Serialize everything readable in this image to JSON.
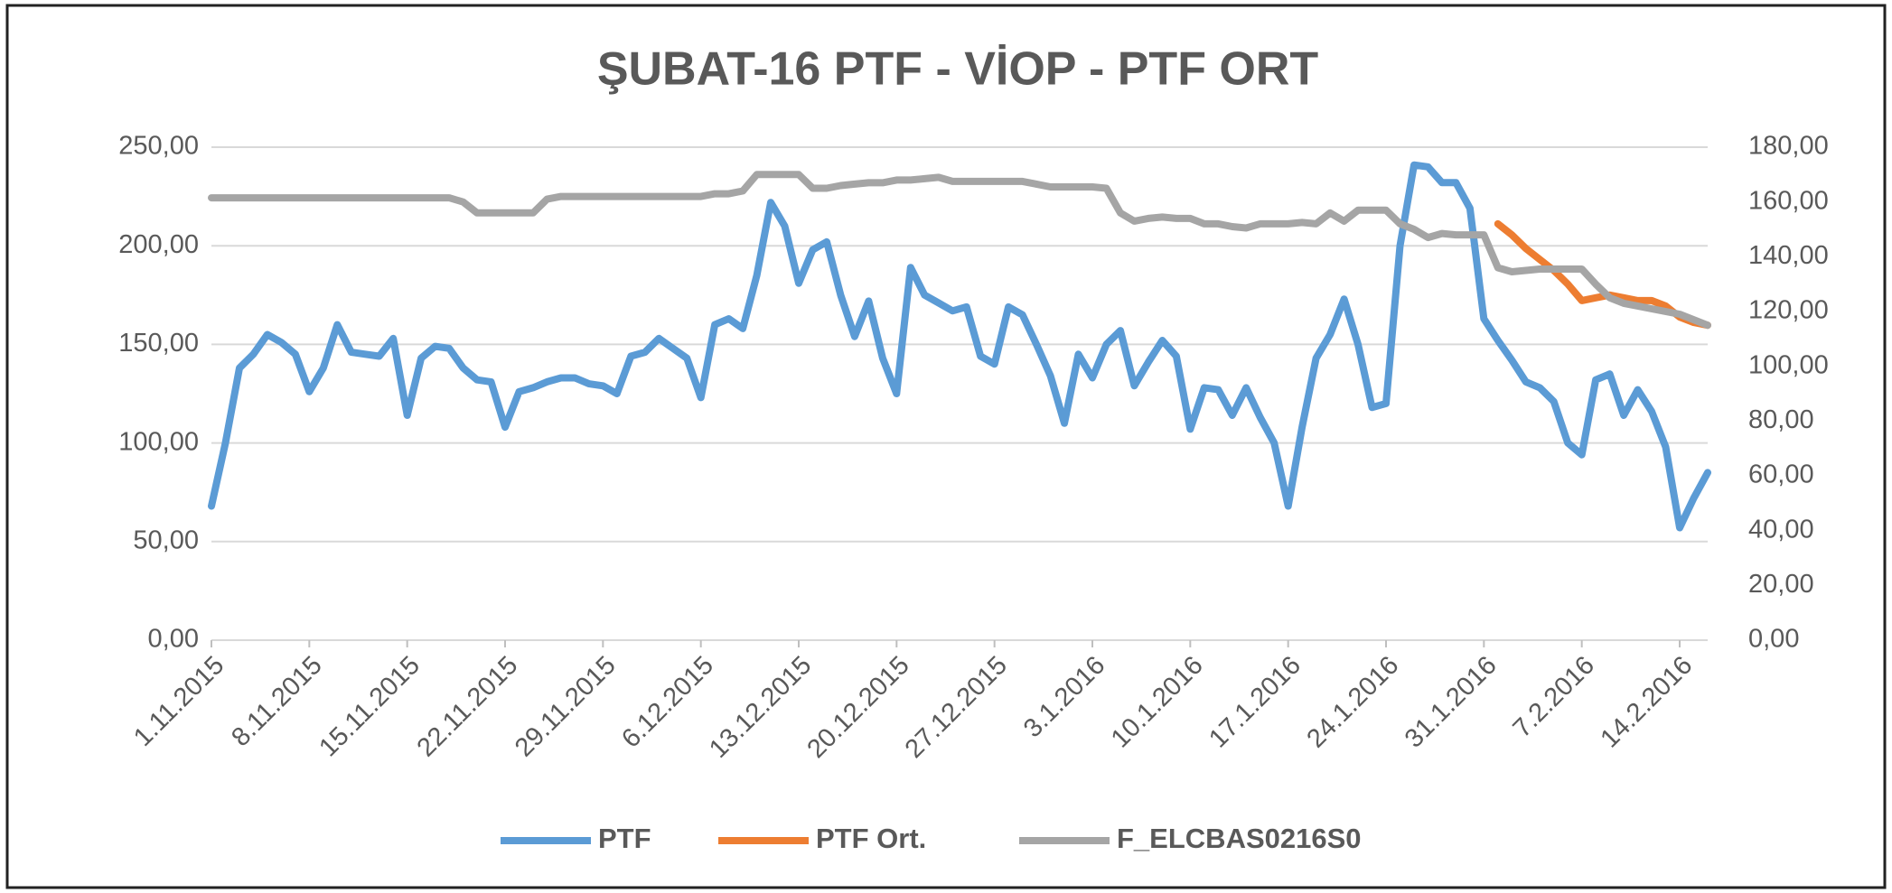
{
  "chart_data": {
    "type": "line",
    "title": "ŞUBAT-16 PTF - VİOP - PTF ORT",
    "categories": [
      "1.11.2015",
      null,
      null,
      null,
      null,
      null,
      null,
      "8.11.2015",
      null,
      null,
      null,
      null,
      null,
      null,
      "15.11.2015",
      null,
      null,
      null,
      null,
      null,
      null,
      "22.11.2015",
      null,
      null,
      null,
      null,
      null,
      null,
      "29.11.2015",
      null,
      null,
      null,
      null,
      null,
      null,
      "6.12.2015",
      null,
      null,
      null,
      null,
      null,
      null,
      "13.12.2015",
      null,
      null,
      null,
      null,
      null,
      null,
      "20.12.2015",
      null,
      null,
      null,
      null,
      null,
      null,
      "27.12.2015",
      null,
      null,
      null,
      null,
      null,
      null,
      "3.1.2016",
      null,
      null,
      null,
      null,
      null,
      null,
      "10.1.2016",
      null,
      null,
      null,
      null,
      null,
      null,
      "17.1.2016",
      null,
      null,
      null,
      null,
      null,
      null,
      "24.1.2016",
      null,
      null,
      null,
      null,
      null,
      null,
      "31.1.2016",
      null,
      null,
      null,
      null,
      null,
      null,
      "7.2.2016",
      null,
      null,
      null,
      null,
      null,
      null,
      "14.2.2016",
      null,
      null
    ],
    "series": [
      {
        "name": "PTF",
        "color": "#5b9bd5",
        "axis": "y",
        "values": [
          68,
          100,
          138,
          145,
          155,
          151,
          145,
          126,
          138,
          160,
          146,
          145,
          144,
          153,
          114,
          143,
          149,
          148,
          138,
          132,
          131,
          108,
          126,
          128,
          131,
          133,
          133,
          130,
          129,
          125,
          144,
          146,
          153,
          148,
          143,
          123,
          160,
          163,
          158,
          185,
          222,
          210,
          181,
          198,
          202,
          175,
          154,
          172,
          143,
          125,
          189,
          175,
          171,
          167,
          169,
          144,
          140,
          169,
          165,
          150,
          134,
          110,
          145,
          133,
          150,
          157,
          129,
          141,
          152,
          144,
          107,
          128,
          127,
          114,
          128,
          113,
          100,
          68,
          108,
          143,
          155,
          173,
          150,
          118,
          120,
          200,
          241,
          240,
          232,
          232,
          219,
          163,
          152,
          142,
          131,
          128,
          121,
          100,
          94,
          132,
          135,
          114,
          127,
          116,
          98,
          57,
          72,
          85
        ]
      },
      {
        "name": "PTF Ort.",
        "color": "#ed7d31",
        "axis": "y2",
        "values": [
          null,
          null,
          null,
          null,
          null,
          null,
          null,
          null,
          null,
          null,
          null,
          null,
          null,
          null,
          null,
          null,
          null,
          null,
          null,
          null,
          null,
          null,
          null,
          null,
          null,
          null,
          null,
          null,
          null,
          null,
          null,
          null,
          null,
          null,
          null,
          null,
          null,
          null,
          null,
          null,
          null,
          null,
          null,
          null,
          null,
          null,
          null,
          null,
          null,
          null,
          null,
          null,
          null,
          null,
          null,
          null,
          null,
          null,
          null,
          null,
          null,
          null,
          null,
          null,
          null,
          null,
          null,
          null,
          null,
          null,
          null,
          null,
          null,
          null,
          null,
          null,
          null,
          null,
          null,
          null,
          null,
          null,
          null,
          null,
          null,
          null,
          null,
          null,
          null,
          null,
          null,
          null,
          152,
          148,
          143,
          139,
          135,
          130,
          124,
          125,
          126,
          125,
          124,
          124,
          122,
          118,
          116,
          115
        ]
      },
      {
        "name": "F_ELCBAS0216S0",
        "color": "#a5a5a5",
        "axis": "y2",
        "values": [
          161.5,
          161.5,
          161.5,
          161.5,
          161.5,
          161.5,
          161.5,
          161.5,
          161.5,
          161.5,
          161.5,
          161.5,
          161.5,
          161.5,
          161.5,
          161.5,
          161.5,
          161.5,
          160,
          156,
          156,
          156,
          156,
          156,
          161,
          162,
          162,
          162,
          162,
          162,
          162,
          162,
          162,
          162,
          162,
          162,
          163,
          163,
          164,
          170,
          170,
          170,
          170,
          165,
          165,
          166,
          166.5,
          167,
          167,
          168,
          168,
          168.5,
          169,
          167.5,
          167.5,
          167.5,
          167.5,
          167.5,
          167.5,
          166.5,
          165.5,
          165.5,
          165.5,
          165.5,
          165,
          156,
          153,
          154,
          154.5,
          154,
          154,
          152,
          152,
          151,
          150.5,
          152,
          152,
          152,
          152.5,
          152,
          156,
          153,
          157,
          157,
          157,
          152,
          150,
          147,
          148.5,
          148,
          148,
          148,
          136,
          134.5,
          135,
          135.5,
          135.5,
          135.5,
          135.5,
          130,
          125,
          123,
          122,
          121,
          120,
          119,
          117,
          115
        ]
      }
    ],
    "ylim": [
      0,
      250
    ],
    "yticks": [
      {
        "value": 0,
        "label": "0,00"
      },
      {
        "value": 50,
        "label": "50,00"
      },
      {
        "value": 100,
        "label": "100,00"
      },
      {
        "value": 150,
        "label": "150,00"
      },
      {
        "value": 200,
        "label": "200,00"
      },
      {
        "value": 250,
        "label": "250,00"
      }
    ],
    "y2lim": [
      0,
      180
    ],
    "y2ticks": [
      {
        "value": 0,
        "label": "0,00"
      },
      {
        "value": 20,
        "label": "20,00"
      },
      {
        "value": 40,
        "label": "40,00"
      },
      {
        "value": 60,
        "label": "60,00"
      },
      {
        "value": 80,
        "label": "80,00"
      },
      {
        "value": 100,
        "label": "100,00"
      },
      {
        "value": 120,
        "label": "120,00"
      },
      {
        "value": 140,
        "label": "140,00"
      },
      {
        "value": 160,
        "label": "160,00"
      },
      {
        "value": 180,
        "label": "180,00"
      }
    ],
    "grid": true,
    "legend": "bottom"
  }
}
